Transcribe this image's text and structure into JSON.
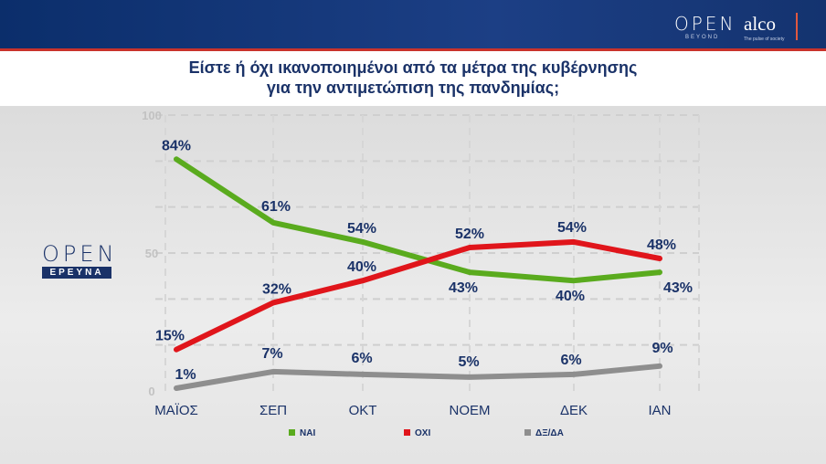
{
  "header": {
    "logo_open": "OPEN",
    "logo_beyond": "BEYOND",
    "logo_alco": "alco",
    "logo_alco_sub": "The pulse of society"
  },
  "side_logo": {
    "open": "OPEN",
    "ereuna": "ΕΡΕΥΝΑ"
  },
  "colors": {
    "nai": "#5aab1e",
    "oxi": "#e0151b",
    "dxda": "#8e8e8e",
    "text": "#1a3268"
  },
  "chart_data": {
    "type": "line",
    "title": [
      "Είστε ή όχι ικανοποιημένοι από τα μέτρα της κυβέρνησης",
      "για την αντιμετώπιση της πανδημίας;"
    ],
    "categories": [
      "ΜΑΪΟΣ",
      "ΣΕΠ",
      "ΟΚΤ",
      "ΝΟΕΜ",
      "ΔΕΚ",
      "ΙΑΝ"
    ],
    "y_ticks": [
      "100",
      "50",
      "0"
    ],
    "ylim": [
      0,
      100
    ],
    "grid": true,
    "legend_position": "bottom",
    "series": [
      {
        "name": "ΝΑΙ",
        "color": "#5aab1e",
        "values": [
          84,
          61,
          54,
          43,
          40,
          43
        ],
        "labels": [
          "84%",
          "61%",
          "54%",
          "43%",
          "40%",
          "43%"
        ]
      },
      {
        "name": "ΟΧΙ",
        "color": "#e0151b",
        "values": [
          15,
          32,
          40,
          52,
          54,
          48
        ],
        "labels": [
          "15%",
          "32%",
          "40%",
          "52%",
          "54%",
          "48%"
        ]
      },
      {
        "name": "ΔΞ/ΔΑ",
        "color": "#8e8e8e",
        "values": [
          1,
          7,
          6,
          5,
          6,
          9
        ],
        "labels": [
          "1%",
          "7%",
          "6%",
          "5%",
          "6%",
          "9%"
        ]
      }
    ]
  }
}
